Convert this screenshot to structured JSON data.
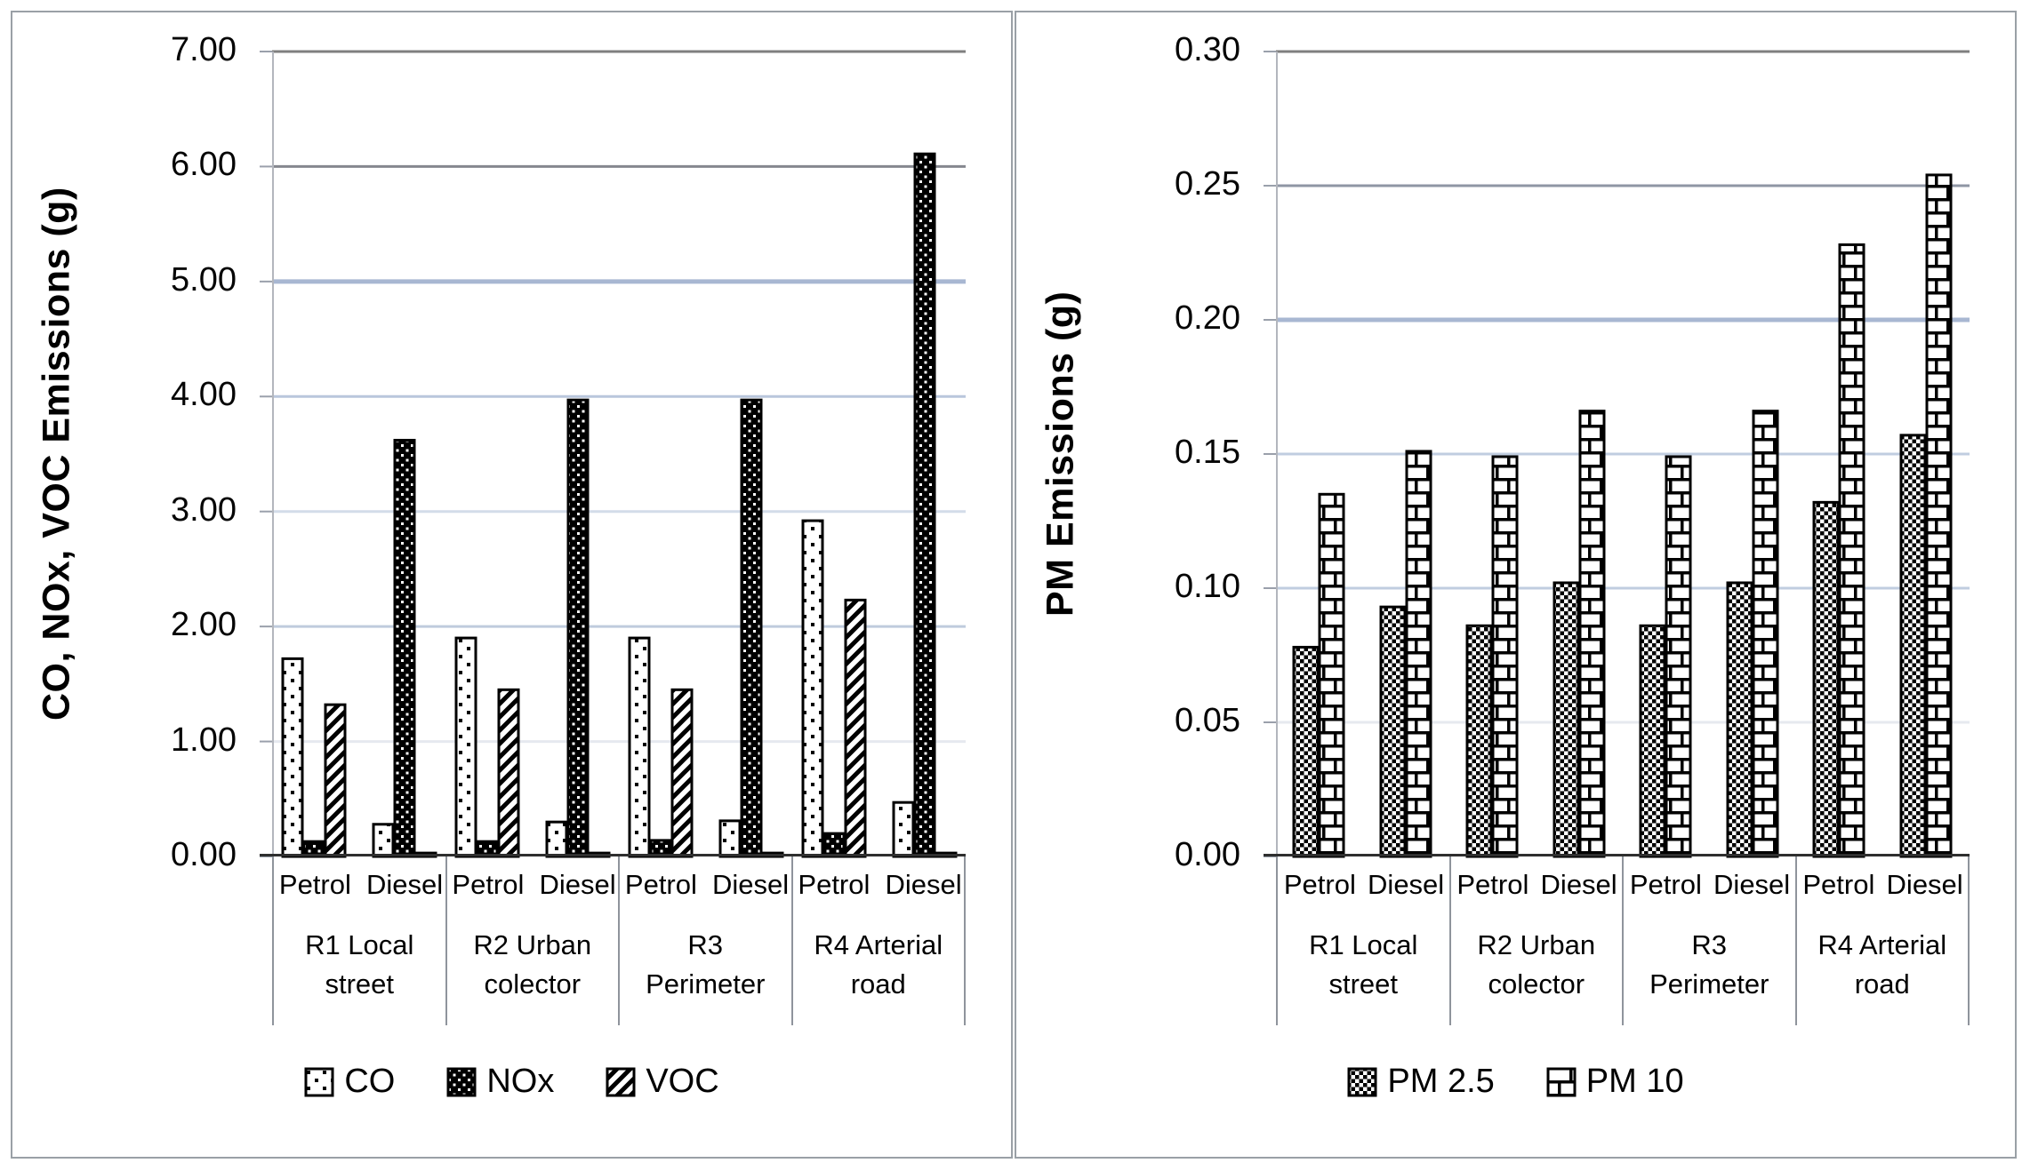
{
  "figure": {
    "panels": [
      {
        "name": "gaseous-emissions-chart"
      },
      {
        "name": "pm-emissions-chart"
      }
    ],
    "border_color": "#9aa0a6",
    "separator_color": "#8f949c"
  },
  "chart_data": [
    {
      "type": "bar",
      "ylabel": "CO, NOx, VOC Emissions (g)",
      "ylim": [
        0,
        7
      ],
      "ytick_step": 1.0,
      "ytick_labels": [
        "7.00",
        "6.00",
        "5.00",
        "4.00",
        "3.00",
        "2.00",
        "1.00",
        "0.00"
      ],
      "categories": [
        "R1 Local street",
        "R2 Urban colector",
        "R3 Perimeter",
        "R4 Arterial road"
      ],
      "subcategories": [
        "Petrol",
        "Diesel"
      ],
      "x_order_note": "values are ordered R1-Petrol, R1-Diesel, R2-Petrol, R2-Diesel, R3-Petrol, R3-Diesel, R4-Petrol, R4-Diesel",
      "grid": true,
      "legend_position": "bottom",
      "series": [
        {
          "name": "CO",
          "pattern": "sparse-dots",
          "values": [
            1.72,
            0.28,
            1.9,
            0.3,
            1.9,
            0.31,
            2.92,
            0.47
          ]
        },
        {
          "name": "NOx",
          "pattern": "white-dots-on-black",
          "values": [
            0.13,
            3.62,
            0.13,
            3.97,
            0.14,
            3.97,
            0.2,
            6.11
          ]
        },
        {
          "name": "VOC",
          "pattern": "diagonal-stripes",
          "values": [
            1.32,
            0.03,
            1.45,
            0.03,
            1.45,
            0.03,
            2.23,
            0.03
          ]
        }
      ],
      "grid_colors": [
        "#7f7f7f",
        "#85878f",
        "#a8b7d2",
        "#b9c6dc",
        "#d3dce9",
        "#bfcbdd",
        "#e6e9ef"
      ],
      "axis_color": "#b3b6bd",
      "baseline_color": "#2f2f2f",
      "bar_border_color": "#000000"
    },
    {
      "type": "bar",
      "ylabel": "PM Emissions (g)",
      "ylim": [
        0,
        0.3
      ],
      "ytick_step": 0.05,
      "ytick_labels": [
        "0.30",
        "0.25",
        "0.20",
        "0.15",
        "0.10",
        "0.05",
        "0.00"
      ],
      "categories": [
        "R1 Local street",
        "R2 Urban colector",
        "R3 Perimeter",
        "R4 Arterial road"
      ],
      "subcategories": [
        "Petrol",
        "Diesel"
      ],
      "x_order_note": "values are ordered R1-Petrol, R1-Diesel, R2-Petrol, R2-Diesel, R3-Petrol, R3-Diesel, R4-Petrol, R4-Diesel",
      "grid": true,
      "legend_position": "bottom",
      "series": [
        {
          "name": "PM 2.5",
          "pattern": "checkerboard",
          "values": [
            0.078,
            0.093,
            0.086,
            0.102,
            0.086,
            0.102,
            0.132,
            0.157
          ]
        },
        {
          "name": "PM 10",
          "pattern": "bricks",
          "values": [
            0.135,
            0.151,
            0.149,
            0.166,
            0.149,
            0.166,
            0.228,
            0.254
          ]
        }
      ],
      "grid_colors": [
        "#7f7f7f",
        "#8f96a4",
        "#a8b7d2",
        "#c0cde0",
        "#c0cde0",
        "#e6e9ef"
      ],
      "axis_color": "#b3b6bd",
      "baseline_color": "#2f2f2f",
      "bar_border_color": "#000000"
    }
  ]
}
